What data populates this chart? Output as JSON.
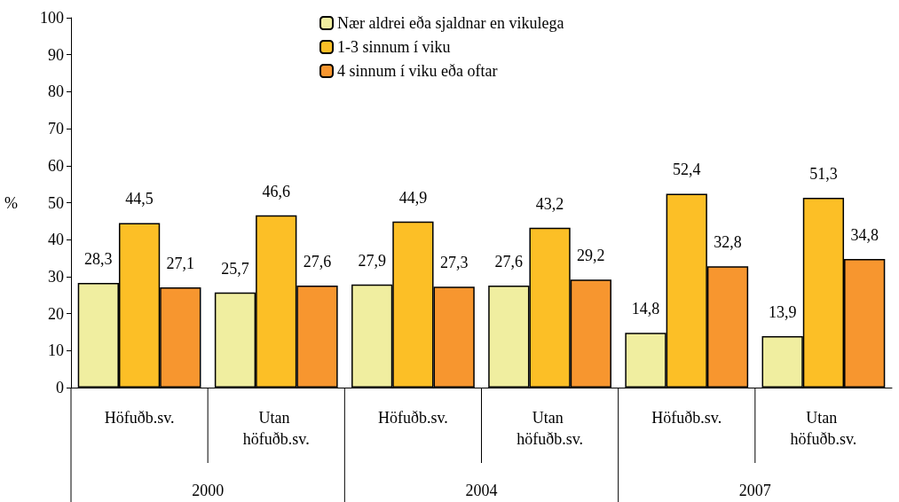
{
  "chart_data": {
    "type": "bar",
    "ylabel": "%",
    "categories": [
      "Höfuðb.sv.",
      "Utan höfuðb.sv.",
      "Höfuðb.sv.",
      "Utan höfuðb.sv.",
      "Höfuðb.sv.",
      "Utan höfuðb.sv."
    ],
    "series": [
      {
        "name": "Nær aldrei eða sjaldnar en vikulega",
        "color": "#f0eea0",
        "values": [
          28.3,
          25.7,
          27.9,
          27.6,
          14.8,
          13.9
        ],
        "value_labels": [
          "28,3",
          "25,7",
          "27,9",
          "27,6",
          "14,8",
          "13,9"
        ]
      },
      {
        "name": "1-3 sinnum í viku",
        "color": "#fcbf26",
        "values": [
          44.5,
          46.6,
          44.9,
          43.2,
          52.4,
          51.3
        ],
        "value_labels": [
          "44,5",
          "46,6",
          "44,9",
          "43,2",
          "52,4",
          "51,3"
        ]
      },
      {
        "name": "4 sinnum í viku eða oftar",
        "color": "#f7962f",
        "values": [
          27.1,
          27.6,
          27.3,
          29.2,
          32.8,
          34.8
        ],
        "value_labels": [
          "27,1",
          "27,6",
          "27,3",
          "29,2",
          "32,8",
          "34,8"
        ]
      }
    ],
    "annotations": [
      "2000",
      "2004",
      "2007"
    ],
    "ylim": [
      0,
      100
    ],
    "yticks": [
      0,
      10,
      20,
      30,
      40,
      50,
      60,
      70,
      80,
      90,
      100
    ],
    "grid": false,
    "legend": "top"
  }
}
